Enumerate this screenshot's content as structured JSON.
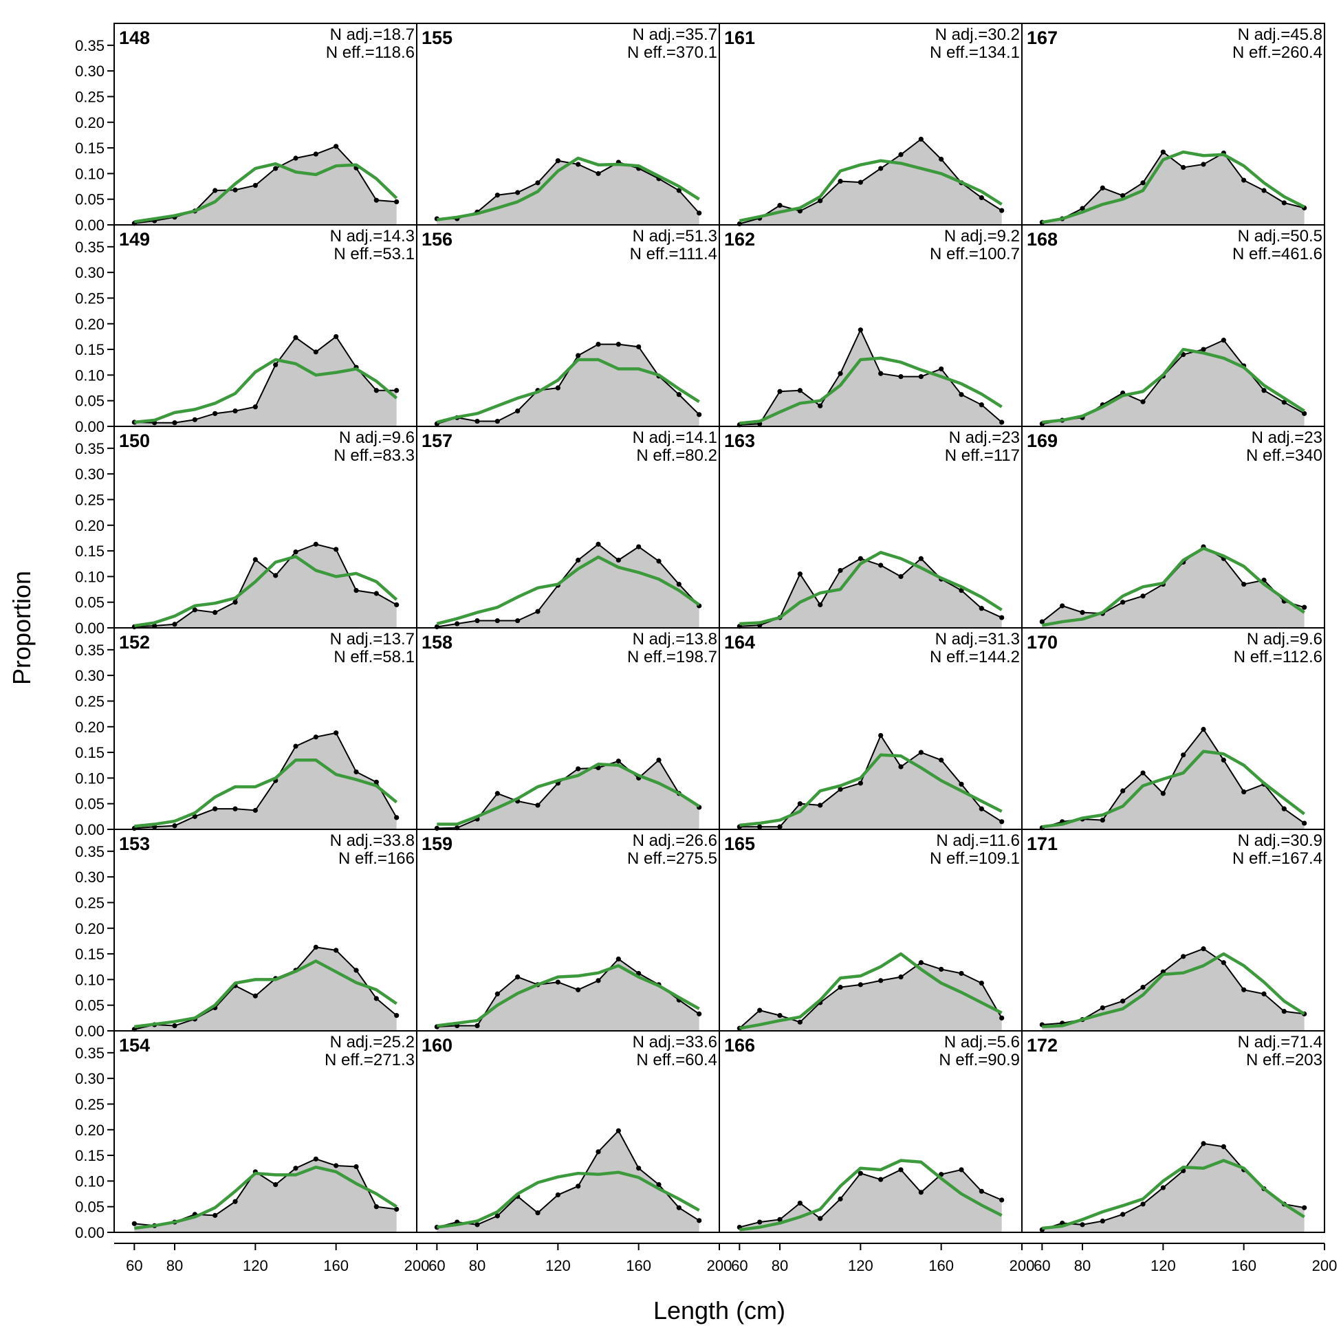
{
  "chart_data": {
    "type": "area",
    "xlabel": "Length (cm)",
    "ylabel": "Proportion",
    "xlim": [
      50,
      200
    ],
    "ylim": [
      0,
      0.375
    ],
    "x_ticks": [
      60,
      80,
      120,
      160,
      200
    ],
    "y_ticks": [
      "0.00",
      "0.05",
      "0.10",
      "0.15",
      "0.20",
      "0.25",
      "0.30",
      "0.35"
    ],
    "x": [
      60,
      70,
      80,
      90,
      100,
      110,
      120,
      130,
      140,
      150,
      160,
      170,
      180,
      190
    ],
    "colors": {
      "observed_fill": "#c8c8c8",
      "observed_line": "#000000",
      "expected_line": "#3c9a3c",
      "baseline": "#bbbbbb"
    },
    "panels": [
      {
        "id": "148",
        "n_adj": "N adj.=18.7",
        "n_eff": "N eff.=118.6",
        "obs": [
          0.003,
          0.008,
          0.015,
          0.027,
          0.067,
          0.068,
          0.077,
          0.11,
          0.13,
          0.138,
          0.153,
          0.111,
          0.048,
          0.045
        ],
        "exp": [
          0.006,
          0.012,
          0.018,
          0.027,
          0.045,
          0.08,
          0.11,
          0.119,
          0.103,
          0.098,
          0.115,
          0.117,
          0.09,
          0.052
        ]
      },
      {
        "id": "149",
        "n_adj": "N adj.=14.3",
        "n_eff": "N eff.=53.1",
        "obs": [
          0.008,
          0.007,
          0.007,
          0.013,
          0.025,
          0.03,
          0.038,
          0.12,
          0.173,
          0.145,
          0.175,
          0.115,
          0.07,
          0.07
        ],
        "exp": [
          0.008,
          0.012,
          0.027,
          0.033,
          0.045,
          0.064,
          0.106,
          0.13,
          0.122,
          0.1,
          0.105,
          0.112,
          0.088,
          0.055
        ]
      },
      {
        "id": "150",
        "n_adj": "N adj.=9.6",
        "n_eff": "N eff.=83.3",
        "obs": [
          0.002,
          0.004,
          0.007,
          0.035,
          0.03,
          0.05,
          0.133,
          0.102,
          0.148,
          0.163,
          0.153,
          0.073,
          0.067,
          0.045
        ],
        "exp": [
          0.004,
          0.01,
          0.023,
          0.043,
          0.048,
          0.058,
          0.09,
          0.128,
          0.139,
          0.112,
          0.1,
          0.106,
          0.09,
          0.055
        ]
      },
      {
        "id": "152",
        "n_adj": "N adj.=13.7",
        "n_eff": "N eff.=58.1",
        "obs": [
          0.002,
          0.005,
          0.007,
          0.025,
          0.04,
          0.04,
          0.037,
          0.095,
          0.162,
          0.18,
          0.188,
          0.112,
          0.092,
          0.023
        ],
        "exp": [
          0.006,
          0.01,
          0.016,
          0.032,
          0.063,
          0.083,
          0.083,
          0.1,
          0.135,
          0.135,
          0.107,
          0.097,
          0.085,
          0.053
        ]
      },
      {
        "id": "153",
        "n_adj": "N adj.=33.8",
        "n_eff": "N eff.=166",
        "obs": [
          0.003,
          0.012,
          0.01,
          0.023,
          0.045,
          0.088,
          0.068,
          0.102,
          0.118,
          0.163,
          0.157,
          0.118,
          0.063,
          0.03
        ],
        "exp": [
          0.008,
          0.013,
          0.018,
          0.025,
          0.05,
          0.093,
          0.1,
          0.1,
          0.116,
          0.136,
          0.115,
          0.094,
          0.08,
          0.053
        ]
      },
      {
        "id": "154",
        "n_adj": "N adj.=25.2",
        "n_eff": "N eff.=271.3",
        "obs": [
          0.017,
          0.013,
          0.02,
          0.035,
          0.033,
          0.06,
          0.118,
          0.093,
          0.125,
          0.143,
          0.13,
          0.128,
          0.05,
          0.045
        ],
        "exp": [
          0.008,
          0.013,
          0.02,
          0.03,
          0.048,
          0.08,
          0.115,
          0.112,
          0.112,
          0.127,
          0.118,
          0.095,
          0.075,
          0.05
        ]
      },
      {
        "id": "155",
        "n_adj": "N adj.=35.7",
        "n_eff": "N eff.=370.1",
        "obs": [
          0.012,
          0.012,
          0.025,
          0.058,
          0.063,
          0.082,
          0.125,
          0.118,
          0.1,
          0.122,
          0.11,
          0.09,
          0.067,
          0.023
        ],
        "exp": [
          0.01,
          0.015,
          0.022,
          0.033,
          0.045,
          0.065,
          0.105,
          0.13,
          0.117,
          0.118,
          0.115,
          0.095,
          0.075,
          0.05
        ]
      },
      {
        "id": "156",
        "n_adj": "N adj.=51.3",
        "n_eff": "N eff.=111.4",
        "obs": [
          0.005,
          0.017,
          0.01,
          0.01,
          0.03,
          0.07,
          0.075,
          0.138,
          0.16,
          0.16,
          0.155,
          0.098,
          0.062,
          0.023
        ],
        "exp": [
          0.008,
          0.018,
          0.025,
          0.04,
          0.055,
          0.067,
          0.09,
          0.13,
          0.13,
          0.112,
          0.112,
          0.1,
          0.073,
          0.048
        ]
      },
      {
        "id": "157",
        "n_adj": "N adj.=14.1",
        "n_eff": "N eff.=80.2",
        "obs": [
          0.002,
          0.008,
          0.014,
          0.014,
          0.014,
          0.032,
          0.083,
          0.132,
          0.163,
          0.132,
          0.158,
          0.13,
          0.085,
          0.043
        ],
        "exp": [
          0.008,
          0.018,
          0.03,
          0.04,
          0.06,
          0.078,
          0.085,
          0.115,
          0.138,
          0.118,
          0.108,
          0.095,
          0.073,
          0.045
        ]
      },
      {
        "id": "158",
        "n_adj": "N adj.=13.8",
        "n_eff": "N eff.=198.7",
        "obs": [
          0.002,
          0.003,
          0.02,
          0.07,
          0.055,
          0.047,
          0.09,
          0.118,
          0.12,
          0.133,
          0.1,
          0.135,
          0.07,
          0.043
        ],
        "exp": [
          0.01,
          0.01,
          0.025,
          0.042,
          0.06,
          0.083,
          0.095,
          0.105,
          0.127,
          0.125,
          0.105,
          0.09,
          0.07,
          0.045
        ]
      },
      {
        "id": "159",
        "n_adj": "N adj.=26.6",
        "n_eff": "N eff.=275.5",
        "obs": [
          0.008,
          0.01,
          0.01,
          0.072,
          0.105,
          0.09,
          0.095,
          0.08,
          0.098,
          0.14,
          0.112,
          0.09,
          0.06,
          0.033
        ],
        "exp": [
          0.01,
          0.015,
          0.02,
          0.05,
          0.073,
          0.09,
          0.105,
          0.107,
          0.113,
          0.127,
          0.105,
          0.088,
          0.065,
          0.043
        ]
      },
      {
        "id": "160",
        "n_adj": "N adj.=33.6",
        "n_eff": "N eff.=60.4",
        "obs": [
          0.01,
          0.02,
          0.015,
          0.032,
          0.07,
          0.038,
          0.073,
          0.09,
          0.157,
          0.198,
          0.125,
          0.093,
          0.048,
          0.023
        ],
        "exp": [
          0.01,
          0.015,
          0.022,
          0.04,
          0.075,
          0.097,
          0.108,
          0.115,
          0.113,
          0.117,
          0.107,
          0.085,
          0.065,
          0.043
        ]
      },
      {
        "id": "161",
        "n_adj": "N adj.=30.2",
        "n_eff": "N eff.=134.1",
        "obs": [
          0.002,
          0.013,
          0.038,
          0.027,
          0.047,
          0.085,
          0.083,
          0.11,
          0.137,
          0.167,
          0.128,
          0.082,
          0.053,
          0.028
        ],
        "exp": [
          0.008,
          0.016,
          0.025,
          0.033,
          0.055,
          0.105,
          0.117,
          0.125,
          0.12,
          0.11,
          0.1,
          0.083,
          0.065,
          0.04
        ]
      },
      {
        "id": "162",
        "n_adj": "N adj.=9.2",
        "n_eff": "N eff.=100.7",
        "obs": [
          0.003,
          0.005,
          0.068,
          0.07,
          0.04,
          0.103,
          0.188,
          0.103,
          0.097,
          0.097,
          0.112,
          0.062,
          0.042,
          0.008
        ],
        "exp": [
          0.006,
          0.01,
          0.028,
          0.045,
          0.05,
          0.08,
          0.13,
          0.133,
          0.125,
          0.11,
          0.097,
          0.083,
          0.063,
          0.038
        ]
      },
      {
        "id": "163",
        "n_adj": "N adj.=23",
        "n_eff": "N eff.=117",
        "obs": [
          0.003,
          0.005,
          0.02,
          0.105,
          0.045,
          0.112,
          0.135,
          0.122,
          0.1,
          0.135,
          0.095,
          0.073,
          0.038,
          0.02
        ],
        "exp": [
          0.008,
          0.01,
          0.02,
          0.05,
          0.068,
          0.075,
          0.125,
          0.147,
          0.135,
          0.117,
          0.097,
          0.08,
          0.06,
          0.035
        ]
      },
      {
        "id": "164",
        "n_adj": "N adj.=31.3",
        "n_eff": "N eff.=144.2",
        "obs": [
          0.005,
          0.005,
          0.005,
          0.05,
          0.047,
          0.078,
          0.09,
          0.183,
          0.122,
          0.15,
          0.135,
          0.088,
          0.04,
          0.015
        ],
        "exp": [
          0.008,
          0.012,
          0.018,
          0.035,
          0.075,
          0.085,
          0.1,
          0.145,
          0.143,
          0.12,
          0.095,
          0.075,
          0.055,
          0.035
        ]
      },
      {
        "id": "165",
        "n_adj": "N adj.=11.6",
        "n_eff": "N eff.=109.1",
        "obs": [
          0.005,
          0.04,
          0.03,
          0.017,
          0.055,
          0.085,
          0.09,
          0.098,
          0.105,
          0.133,
          0.12,
          0.112,
          0.093,
          0.025
        ],
        "exp": [
          0.005,
          0.012,
          0.02,
          0.027,
          0.06,
          0.103,
          0.107,
          0.125,
          0.15,
          0.12,
          0.093,
          0.075,
          0.055,
          0.035
        ]
      },
      {
        "id": "166",
        "n_adj": "N adj.=5.6",
        "n_eff": "N eff.=90.9",
        "obs": [
          0.01,
          0.02,
          0.025,
          0.057,
          0.027,
          0.065,
          0.115,
          0.103,
          0.122,
          0.078,
          0.113,
          0.122,
          0.08,
          0.063
        ],
        "exp": [
          0.005,
          0.01,
          0.018,
          0.03,
          0.045,
          0.09,
          0.125,
          0.122,
          0.14,
          0.137,
          0.105,
          0.075,
          0.053,
          0.033
        ]
      },
      {
        "id": "167",
        "n_adj": "N adj.=45.8",
        "n_eff": "N eff.=260.4",
        "obs": [
          0.005,
          0.012,
          0.032,
          0.072,
          0.057,
          0.082,
          0.142,
          0.112,
          0.118,
          0.14,
          0.087,
          0.067,
          0.043,
          0.033
        ],
        "exp": [
          0.005,
          0.012,
          0.025,
          0.04,
          0.05,
          0.067,
          0.127,
          0.142,
          0.135,
          0.137,
          0.115,
          0.082,
          0.055,
          0.035
        ]
      },
      {
        "id": "168",
        "n_adj": "N adj.=50.5",
        "n_eff": "N eff.=461.6",
        "obs": [
          0.005,
          0.012,
          0.017,
          0.042,
          0.065,
          0.048,
          0.098,
          0.14,
          0.15,
          0.168,
          0.118,
          0.07,
          0.047,
          0.025
        ],
        "exp": [
          0.008,
          0.012,
          0.02,
          0.038,
          0.06,
          0.068,
          0.1,
          0.15,
          0.143,
          0.133,
          0.115,
          0.08,
          0.055,
          0.03
        ]
      },
      {
        "id": "169",
        "n_adj": "N adj.=23",
        "n_eff": "N eff.=340",
        "obs": [
          0.012,
          0.043,
          0.03,
          0.028,
          0.05,
          0.062,
          0.085,
          0.128,
          0.158,
          0.135,
          0.085,
          0.093,
          0.052,
          0.04
        ],
        "exp": [
          0.005,
          0.012,
          0.017,
          0.03,
          0.062,
          0.08,
          0.087,
          0.132,
          0.155,
          0.14,
          0.12,
          0.085,
          0.057,
          0.03
        ]
      },
      {
        "id": "170",
        "n_adj": "N adj.=9.6",
        "n_eff": "N eff.=112.6",
        "obs": [
          0.003,
          0.015,
          0.02,
          0.018,
          0.075,
          0.11,
          0.07,
          0.145,
          0.195,
          0.135,
          0.073,
          0.088,
          0.04,
          0.012
        ],
        "exp": [
          0.005,
          0.01,
          0.022,
          0.028,
          0.045,
          0.085,
          0.098,
          0.11,
          0.152,
          0.147,
          0.125,
          0.09,
          0.06,
          0.03
        ]
      },
      {
        "id": "171",
        "n_adj": "N adj.=30.9",
        "n_eff": "N eff.=167.4",
        "obs": [
          0.012,
          0.015,
          0.022,
          0.045,
          0.058,
          0.085,
          0.115,
          0.145,
          0.16,
          0.133,
          0.08,
          0.072,
          0.038,
          0.033
        ],
        "exp": [
          0.008,
          0.01,
          0.022,
          0.033,
          0.043,
          0.07,
          0.11,
          0.113,
          0.127,
          0.15,
          0.127,
          0.095,
          0.058,
          0.033
        ]
      },
      {
        "id": "172",
        "n_adj": "N adj.=71.4",
        "n_eff": "N eff.=203",
        "obs": [
          0.005,
          0.018,
          0.015,
          0.022,
          0.035,
          0.055,
          0.087,
          0.12,
          0.173,
          0.167,
          0.122,
          0.085,
          0.055,
          0.048
        ],
        "exp": [
          0.008,
          0.012,
          0.025,
          0.04,
          0.052,
          0.065,
          0.1,
          0.127,
          0.125,
          0.14,
          0.125,
          0.085,
          0.055,
          0.03
        ]
      }
    ]
  }
}
